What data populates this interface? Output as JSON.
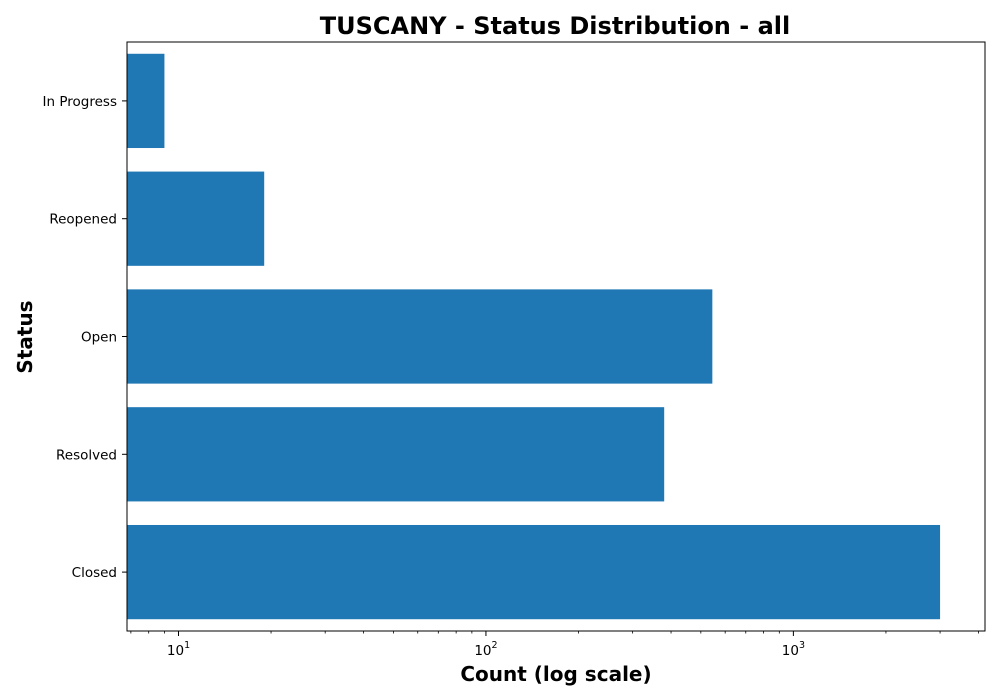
{
  "chart_data": {
    "type": "bar",
    "orientation": "horizontal",
    "title": "TUSCANY - Status Distribution - all",
    "xlabel": "Count (log scale)",
    "ylabel": "Status",
    "x_scale": "log",
    "xlim": [
      6.8,
      4200
    ],
    "x_ticks": [
      {
        "value": 10,
        "base": "10",
        "exp": "1"
      },
      {
        "value": 100,
        "base": "10",
        "exp": "2"
      },
      {
        "value": 1000,
        "base": "10",
        "exp": "3"
      }
    ],
    "categories": [
      "Closed",
      "Resolved",
      "Open",
      "Reopened",
      "In Progress"
    ],
    "values": [
      3000,
      380,
      545,
      19,
      9
    ],
    "bar_color": "#1f77b4",
    "grid": false,
    "legend": false
  }
}
